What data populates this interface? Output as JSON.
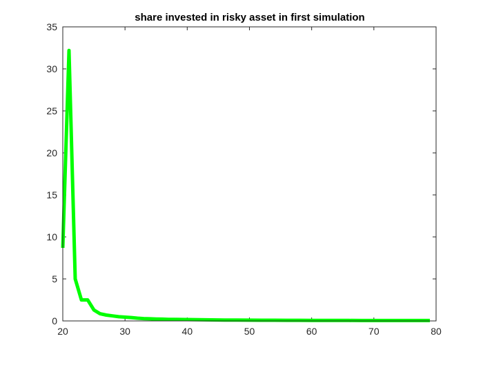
{
  "chart_data": {
    "type": "line",
    "title": "share invested in risky asset in first simulation",
    "xlabel": "",
    "ylabel": "",
    "xlim": [
      20,
      80
    ],
    "ylim": [
      0,
      35
    ],
    "xticks": [
      20,
      30,
      40,
      50,
      60,
      70,
      80
    ],
    "yticks": [
      0,
      5,
      10,
      15,
      20,
      25,
      30,
      35
    ],
    "grid": false,
    "series": [
      {
        "name": "share",
        "color": "#00ff00",
        "x": [
          20,
          21,
          22,
          23,
          24,
          25,
          26,
          27,
          28,
          29,
          30,
          31,
          32,
          33,
          34,
          35,
          36,
          37,
          38,
          39,
          40,
          42,
          44,
          46,
          48,
          50,
          52,
          54,
          56,
          58,
          60,
          62,
          64,
          66,
          68,
          70,
          72,
          74,
          76,
          78,
          79
        ],
        "y": [
          8.7,
          32.2,
          5.0,
          2.5,
          2.5,
          1.3,
          0.85,
          0.7,
          0.6,
          0.5,
          0.45,
          0.4,
          0.33,
          0.28,
          0.25,
          0.23,
          0.21,
          0.19,
          0.18,
          0.17,
          0.16,
          0.14,
          0.12,
          0.11,
          0.1,
          0.09,
          0.085,
          0.08,
          0.075,
          0.07,
          0.065,
          0.06,
          0.06,
          0.055,
          0.05,
          0.05,
          0.05,
          0.05,
          0.05,
          0.05,
          0.05
        ]
      }
    ]
  }
}
